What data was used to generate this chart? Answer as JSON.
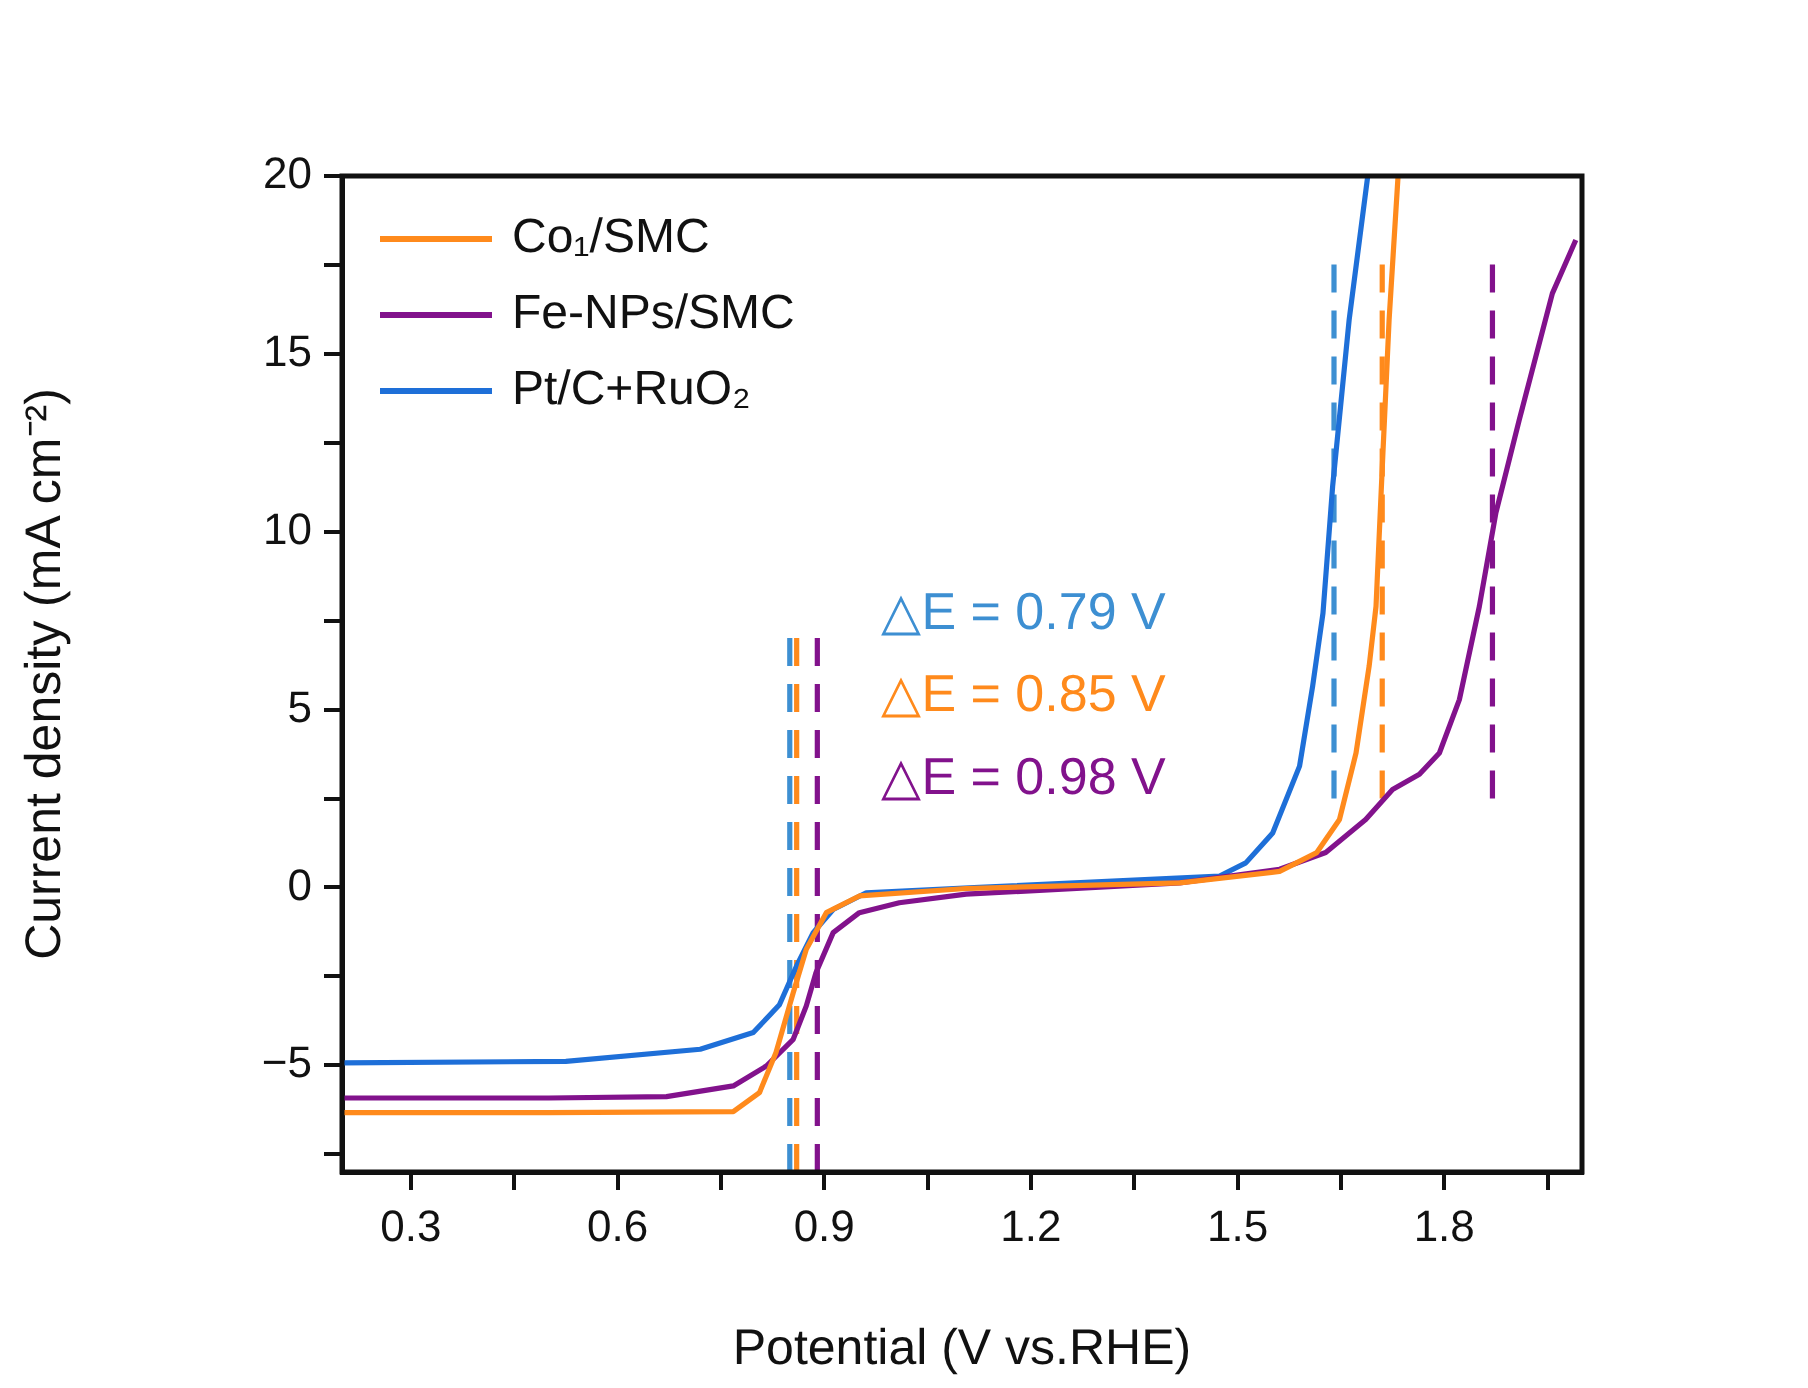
{
  "chart_data": {
    "type": "line",
    "xlabel": "Potential (V vs.RHE)",
    "ylabel": "Current density (mA cm⁻²)",
    "xlim": [
      0.2,
      2.0
    ],
    "xticks": [
      0.3,
      {
        "value": 0.45,
        "label": null
      },
      0.6,
      {
        "value": 0.75,
        "label": null
      },
      0.9,
      {
        "value": 1.05,
        "label": null
      },
      1.2,
      {
        "value": 1.35,
        "label": null
      },
      1.5,
      {
        "value": 1.65,
        "label": null
      },
      1.8,
      {
        "value": 1.95,
        "label": null
      }
    ],
    "ylim": [
      -8,
      20
    ],
    "yticks": [
      {
        "value": -7.5,
        "label": null
      },
      {
        "value": -5,
        "label": "−5"
      },
      {
        "value": -2.5,
        "label": null
      },
      0,
      {
        "value": 2.5,
        "label": null
      },
      5,
      {
        "value": 7.5,
        "label": null
      },
      10,
      {
        "value": 12.5,
        "label": null
      },
      15,
      {
        "value": 17.5,
        "label": null
      },
      20
    ],
    "legend": "top left",
    "grid": false,
    "marker": "none",
    "line_style": "solid",
    "series": [
      {
        "name": "Co₁/SMC",
        "color": "#ff8a1c",
        "x": [
          0.2,
          0.5,
          0.768,
          0.806,
          0.83,
          0.855,
          0.874,
          0.903,
          0.951,
          1.106,
          1.416,
          1.561,
          1.615,
          1.648,
          1.672,
          1.691,
          1.701,
          1.711,
          1.72,
          1.733
        ],
        "values": [
          -6.33,
          -6.33,
          -6.3,
          -5.77,
          -4.64,
          -2.96,
          -1.74,
          -0.71,
          -0.24,
          -0.03,
          0.13,
          0.45,
          0.98,
          1.91,
          3.78,
          6.22,
          7.9,
          12.21,
          15.96,
          20
        ]
      },
      {
        "name": "Fe-NPs/SMC",
        "color": "#82128c",
        "x": [
          0.2,
          0.5,
          0.671,
          0.768,
          0.816,
          0.855,
          0.874,
          0.888,
          0.913,
          0.951,
          1.009,
          1.106,
          1.416,
          1.561,
          1.628,
          1.686,
          1.725,
          1.764,
          1.793,
          1.822,
          1.851,
          1.875,
          1.909,
          1.947,
          1.957,
          1.991
        ],
        "values": [
          -5.92,
          -5.92,
          -5.88,
          -5.58,
          -5.02,
          -4.27,
          -3.33,
          -2.4,
          -1.27,
          -0.71,
          -0.43,
          -0.19,
          0.13,
          0.51,
          0.98,
          1.91,
          2.75,
          3.18,
          3.78,
          5.28,
          7.9,
          10.53,
          13.15,
          15.96,
          16.7,
          18.2
        ]
      },
      {
        "name": "Pt/C+RuO₂",
        "color": "#1e6fd8",
        "x": [
          0.2,
          0.525,
          0.72,
          0.797,
          0.835,
          0.86,
          0.884,
          0.913,
          0.961,
          1.125,
          1.474,
          1.512,
          1.551,
          1.59,
          1.609,
          1.624,
          1.638,
          1.662,
          1.689
        ],
        "values": [
          -4.93,
          -4.89,
          -4.55,
          -4.08,
          -3.3,
          -2.2,
          -1.27,
          -0.62,
          -0.15,
          0,
          0.32,
          0.69,
          1.53,
          3.41,
          5.66,
          7.71,
          11.27,
          15.96,
          20
        ]
      },
      {
        "color": "#3d8fd2",
        "line_style": "dashed",
        "x": [
          0.85,
          0.85
        ],
        "values": [
          -8,
          7.2
        ]
      },
      {
        "color": "#ff8a1c",
        "line_style": "dashed",
        "x": [
          0.86,
          0.86
        ],
        "values": [
          -8,
          7.2
        ]
      },
      {
        "color": "#82128c",
        "line_style": "dashed",
        "x": [
          0.89,
          0.89
        ],
        "values": [
          -8,
          7.2
        ]
      },
      {
        "color": "#3d8fd2",
        "line_style": "dashed",
        "x": [
          1.64,
          1.64
        ],
        "values": [
          2.5,
          17.75
        ]
      },
      {
        "color": "#ff8a1c",
        "line_style": "dashed",
        "x": [
          1.71,
          1.71
        ],
        "values": [
          2.5,
          17.75
        ]
      },
      {
        "color": "#82128c",
        "line_style": "dashed",
        "x": [
          1.87,
          1.87
        ],
        "values": [
          2.5,
          17.75
        ]
      }
    ],
    "annotations": [
      "△E = 0.79 V",
      "△E = 0.85 V",
      "△E = 0.98 V"
    ]
  }
}
